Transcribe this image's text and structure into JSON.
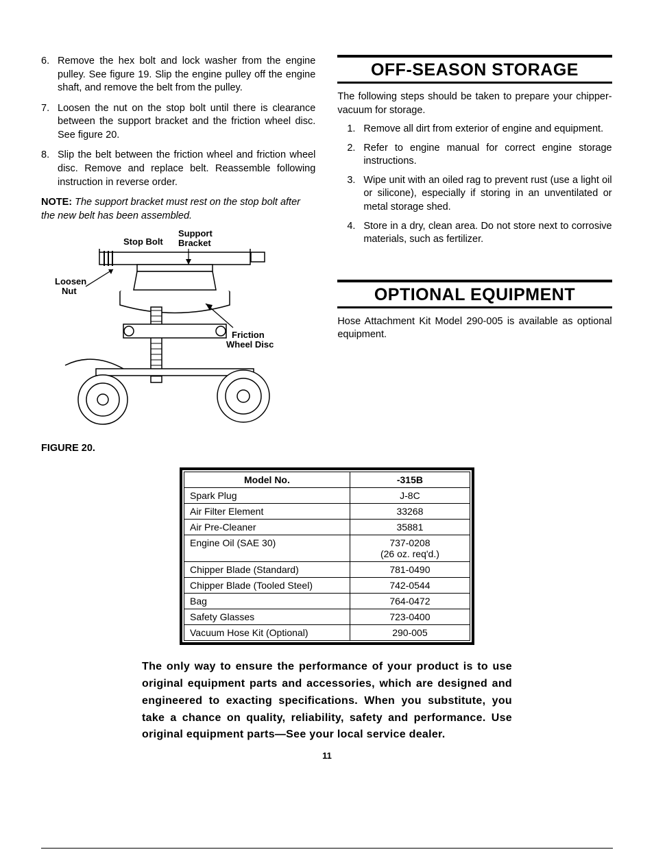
{
  "left": {
    "steps": [
      {
        "n": "6.",
        "text": "Remove the hex bolt and lock washer from the engine pulley. See figure 19. Slip the engine pulley off the engine shaft, and remove the belt from the pulley."
      },
      {
        "n": "7.",
        "text": "Loosen the nut on the stop bolt until there is clearance between the support bracket and the friction wheel disc. See figure 20."
      },
      {
        "n": "8.",
        "text": "Slip the belt between the friction wheel and friction wheel disc. Remove and replace belt. Reassemble following instruction in reverse order."
      }
    ],
    "note_label": "NOTE:",
    "note_body": "The support bracket must rest on the stop bolt after the new belt has been assembled.",
    "figure_label": "FIGURE 20.",
    "diagram": {
      "labels": {
        "stop_bolt": "Stop Bolt",
        "support": "Support",
        "bracket": "Bracket",
        "loosen": "Loosen",
        "nut": "Nut",
        "friction": "Friction",
        "wheel_disc": "Wheel Disc"
      }
    }
  },
  "right": {
    "storage_heading": "OFF-SEASON STORAGE",
    "storage_intro": "The following steps should be taken to prepare your chipper-vacuum for storage.",
    "storage_steps": [
      {
        "n": "1.",
        "text": "Remove all dirt from exterior of engine and equipment."
      },
      {
        "n": "2.",
        "text": "Refer to engine manual for correct engine storage instructions."
      },
      {
        "n": "3.",
        "text": "Wipe unit with an oiled rag to prevent rust (use a light oil or silicone), especially if storing in an unventilated or metal storage shed."
      },
      {
        "n": "4.",
        "text": "Store in a dry, clean area. Do not store next to corrosive materials, such as fertilizer."
      }
    ],
    "optional_heading": "OPTIONAL EQUIPMENT",
    "optional_para": "Hose Attachment Kit Model 290-005 is available as optional equipment."
  },
  "table": {
    "headers": [
      "Model No.",
      "-315B"
    ],
    "rows": [
      [
        "Spark Plug",
        "J-8C"
      ],
      [
        "Air Filter Element",
        "33268"
      ],
      [
        "Air Pre-Cleaner",
        "35881"
      ],
      [
        "Engine Oil (SAE 30)",
        "737-0208\n(26 oz. req'd.)"
      ],
      [
        "Chipper Blade (Standard)",
        "781-0490"
      ],
      [
        "Chipper Blade (Tooled Steel)",
        "742-0544"
      ],
      [
        "Bag",
        "764-0472"
      ],
      [
        "Safety Glasses",
        "723-0400"
      ],
      [
        "Vacuum Hose Kit (Optional)",
        "290-005"
      ]
    ]
  },
  "footer_bold": "The only way to ensure the performance of your product is to use original equipment parts and accessories, which are designed and engineered to exacting specifications. When you substitute, you take a chance on quality, reliability, safety and performance. Use original equipment parts—See your local service dealer.",
  "page_number": "11"
}
